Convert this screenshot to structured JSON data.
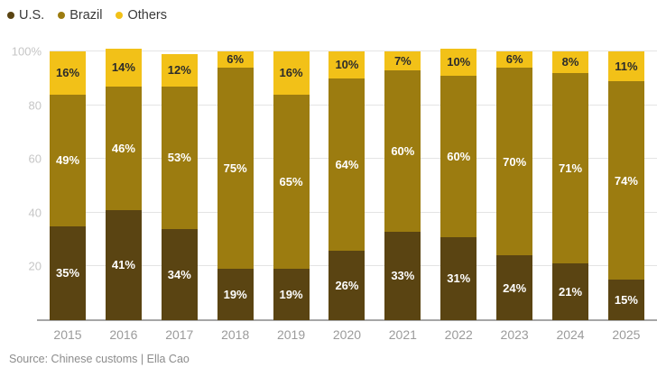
{
  "chart_data": {
    "type": "bar",
    "stacked": true,
    "unit": "%",
    "title": "",
    "xlabel": "",
    "ylabel": "",
    "ylim": [
      0,
      100
    ],
    "grid": true,
    "legend_position": "top-left",
    "categories": [
      "2015",
      "2016",
      "2017",
      "2018",
      "2019",
      "2020",
      "2021",
      "2022",
      "2023",
      "2024",
      "2025"
    ],
    "series": [
      {
        "name": "U.S.",
        "color": "#5a4412",
        "label_color": "#ffffff",
        "values": [
          35,
          41,
          34,
          19,
          19,
          26,
          33,
          31,
          24,
          21,
          15
        ]
      },
      {
        "name": "Brazil",
        "color": "#9c7c10",
        "label_color": "#ffffff",
        "values": [
          49,
          46,
          53,
          75,
          65,
          64,
          60,
          60,
          70,
          71,
          74
        ]
      },
      {
        "name": "Others",
        "color": "#f2c118",
        "label_color": "#2b2b2b",
        "values": [
          16,
          14,
          12,
          6,
          16,
          10,
          7,
          10,
          6,
          8,
          11
        ]
      }
    ],
    "yticks": [
      {
        "value": 20,
        "label": "20"
      },
      {
        "value": 40,
        "label": "40"
      },
      {
        "value": 60,
        "label": "60"
      },
      {
        "value": 80,
        "label": "80"
      },
      {
        "value": 100,
        "label": "100%"
      }
    ]
  },
  "colors": {
    "gridline": "#e4e4e4",
    "baseline": "#a6a6a6",
    "tick_label": "#c6c6c6",
    "year_label": "#9b9b9b"
  },
  "source": {
    "text": "Source: Chinese customs | Ella Cao"
  }
}
